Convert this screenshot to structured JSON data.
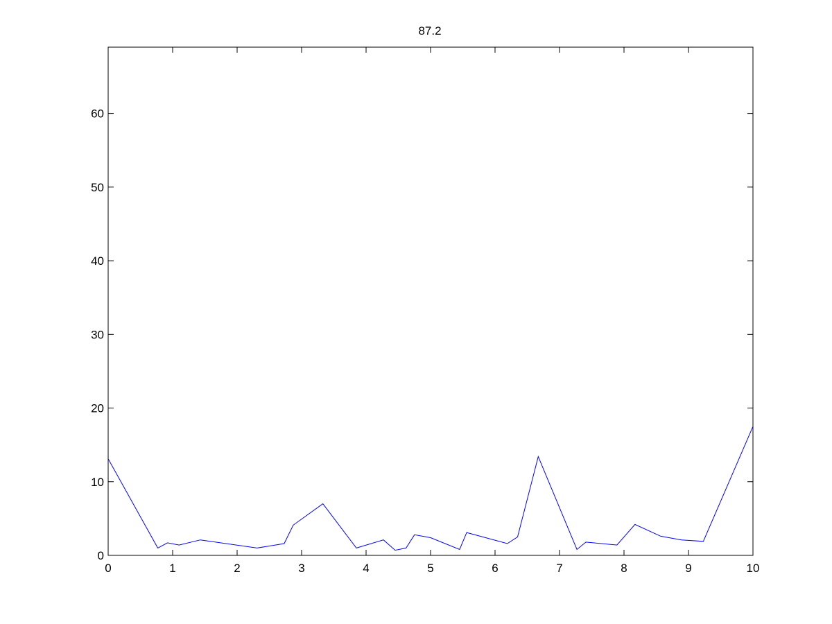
{
  "chart_data": {
    "type": "line",
    "title": "87.2",
    "xlabel": "",
    "ylabel": "",
    "xlim": [
      0,
      10
    ],
    "ylim": [
      0,
      69
    ],
    "xticks": [
      0,
      1,
      2,
      3,
      4,
      5,
      6,
      7,
      8,
      9,
      10
    ],
    "xtick_labels": [
      "0",
      "1",
      "2",
      "3",
      "4",
      "5",
      "6",
      "7",
      "8",
      "9",
      "10"
    ],
    "yticks": [
      0,
      10,
      20,
      30,
      40,
      50,
      60
    ],
    "ytick_labels": [
      "0",
      "10",
      "20",
      "30",
      "40",
      "50",
      "60"
    ],
    "grid": false,
    "legend": "none",
    "series": [
      {
        "color": "#0000ff",
        "x": [
          0,
          0.77,
          0.92,
          1.1,
          1.43,
          2.31,
          2.73,
          2.87,
          3.33,
          3.85,
          4.27,
          4.45,
          4.62,
          4.75,
          5.0,
          5.45,
          5.56,
          6.19,
          6.35,
          6.67,
          7.27,
          7.41,
          7.89,
          8.17,
          8.57,
          8.89,
          9.23,
          10.0
        ],
        "y": [
          13.1,
          1.0,
          1.7,
          1.4,
          2.1,
          1.0,
          1.6,
          4.1,
          7.0,
          1.0,
          2.1,
          0.7,
          1.0,
          2.8,
          2.4,
          0.8,
          3.1,
          1.6,
          2.5,
          13.4,
          0.8,
          1.8,
          1.4,
          4.2,
          2.6,
          2.1,
          1.9,
          17.5
        ]
      }
    ]
  }
}
